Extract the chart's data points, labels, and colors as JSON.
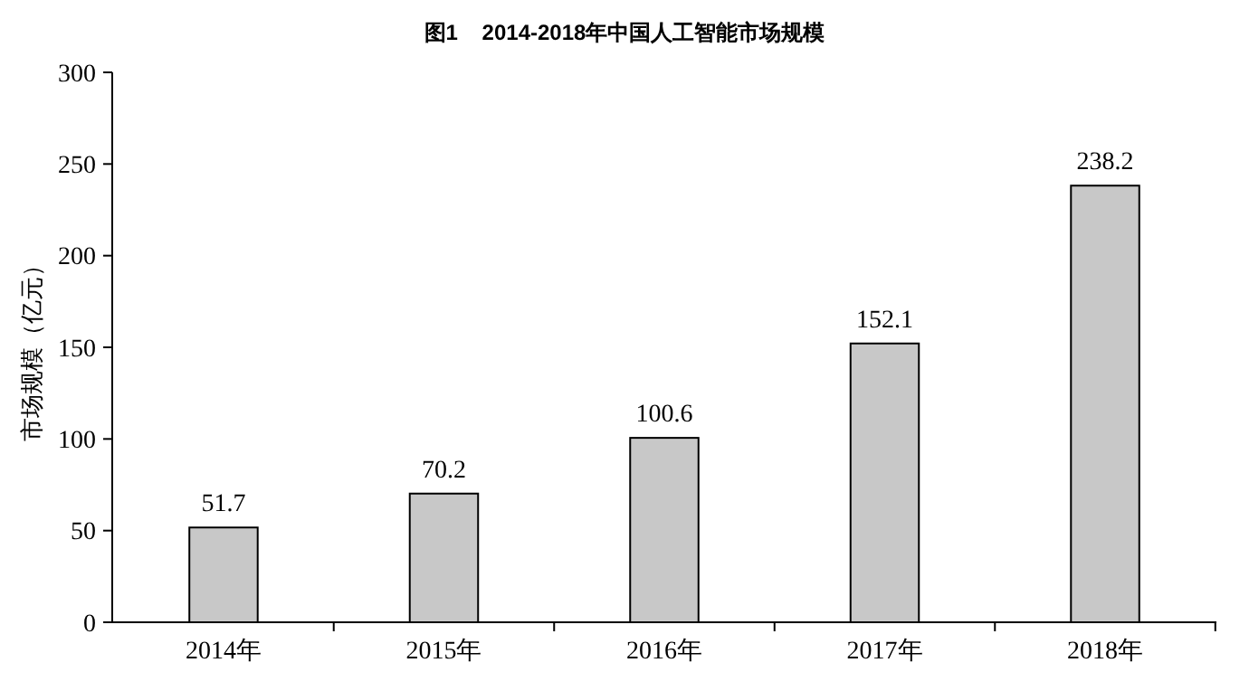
{
  "chart_data": {
    "type": "bar",
    "title": "图1    2014-2018年中国人工智能市场规模",
    "ylabel": "市场规模（亿元）",
    "categories": [
      "2014年",
      "2015年",
      "2016年",
      "2017年",
      "2018年"
    ],
    "values": [
      51.7,
      70.2,
      100.6,
      152.1,
      238.2
    ],
    "color": "#c8c8c8",
    "ylim": [
      0,
      300
    ],
    "yticks": [
      0,
      50,
      100,
      150,
      200,
      250,
      300
    ],
    "grid": false,
    "data_labels": true
  }
}
